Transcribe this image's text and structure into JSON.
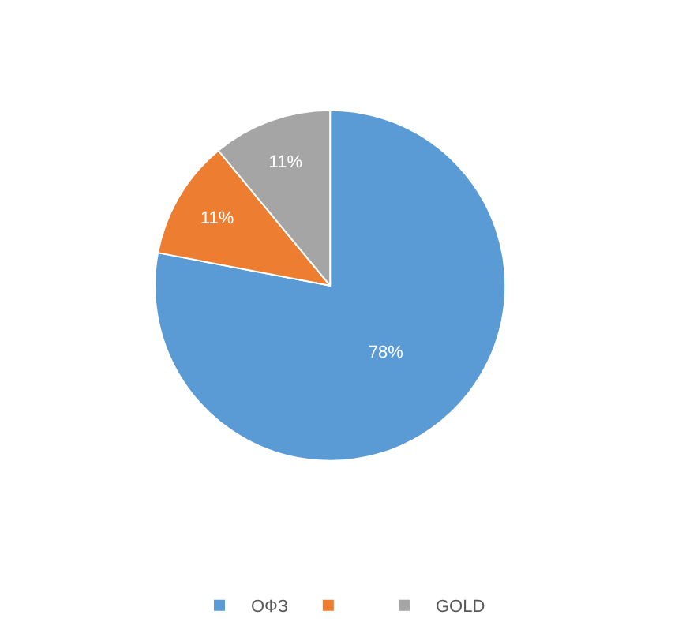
{
  "chart_data": {
    "type": "pie",
    "categories": [
      "ОФЗ",
      null,
      "GOLD"
    ],
    "values": [
      78,
      11,
      11
    ],
    "value_labels": [
      "78%",
      "11%",
      "11%"
    ],
    "colors": [
      "#5b9bd5",
      "#ed7d31",
      "#a5a5a5"
    ],
    "legend": "bottom"
  }
}
